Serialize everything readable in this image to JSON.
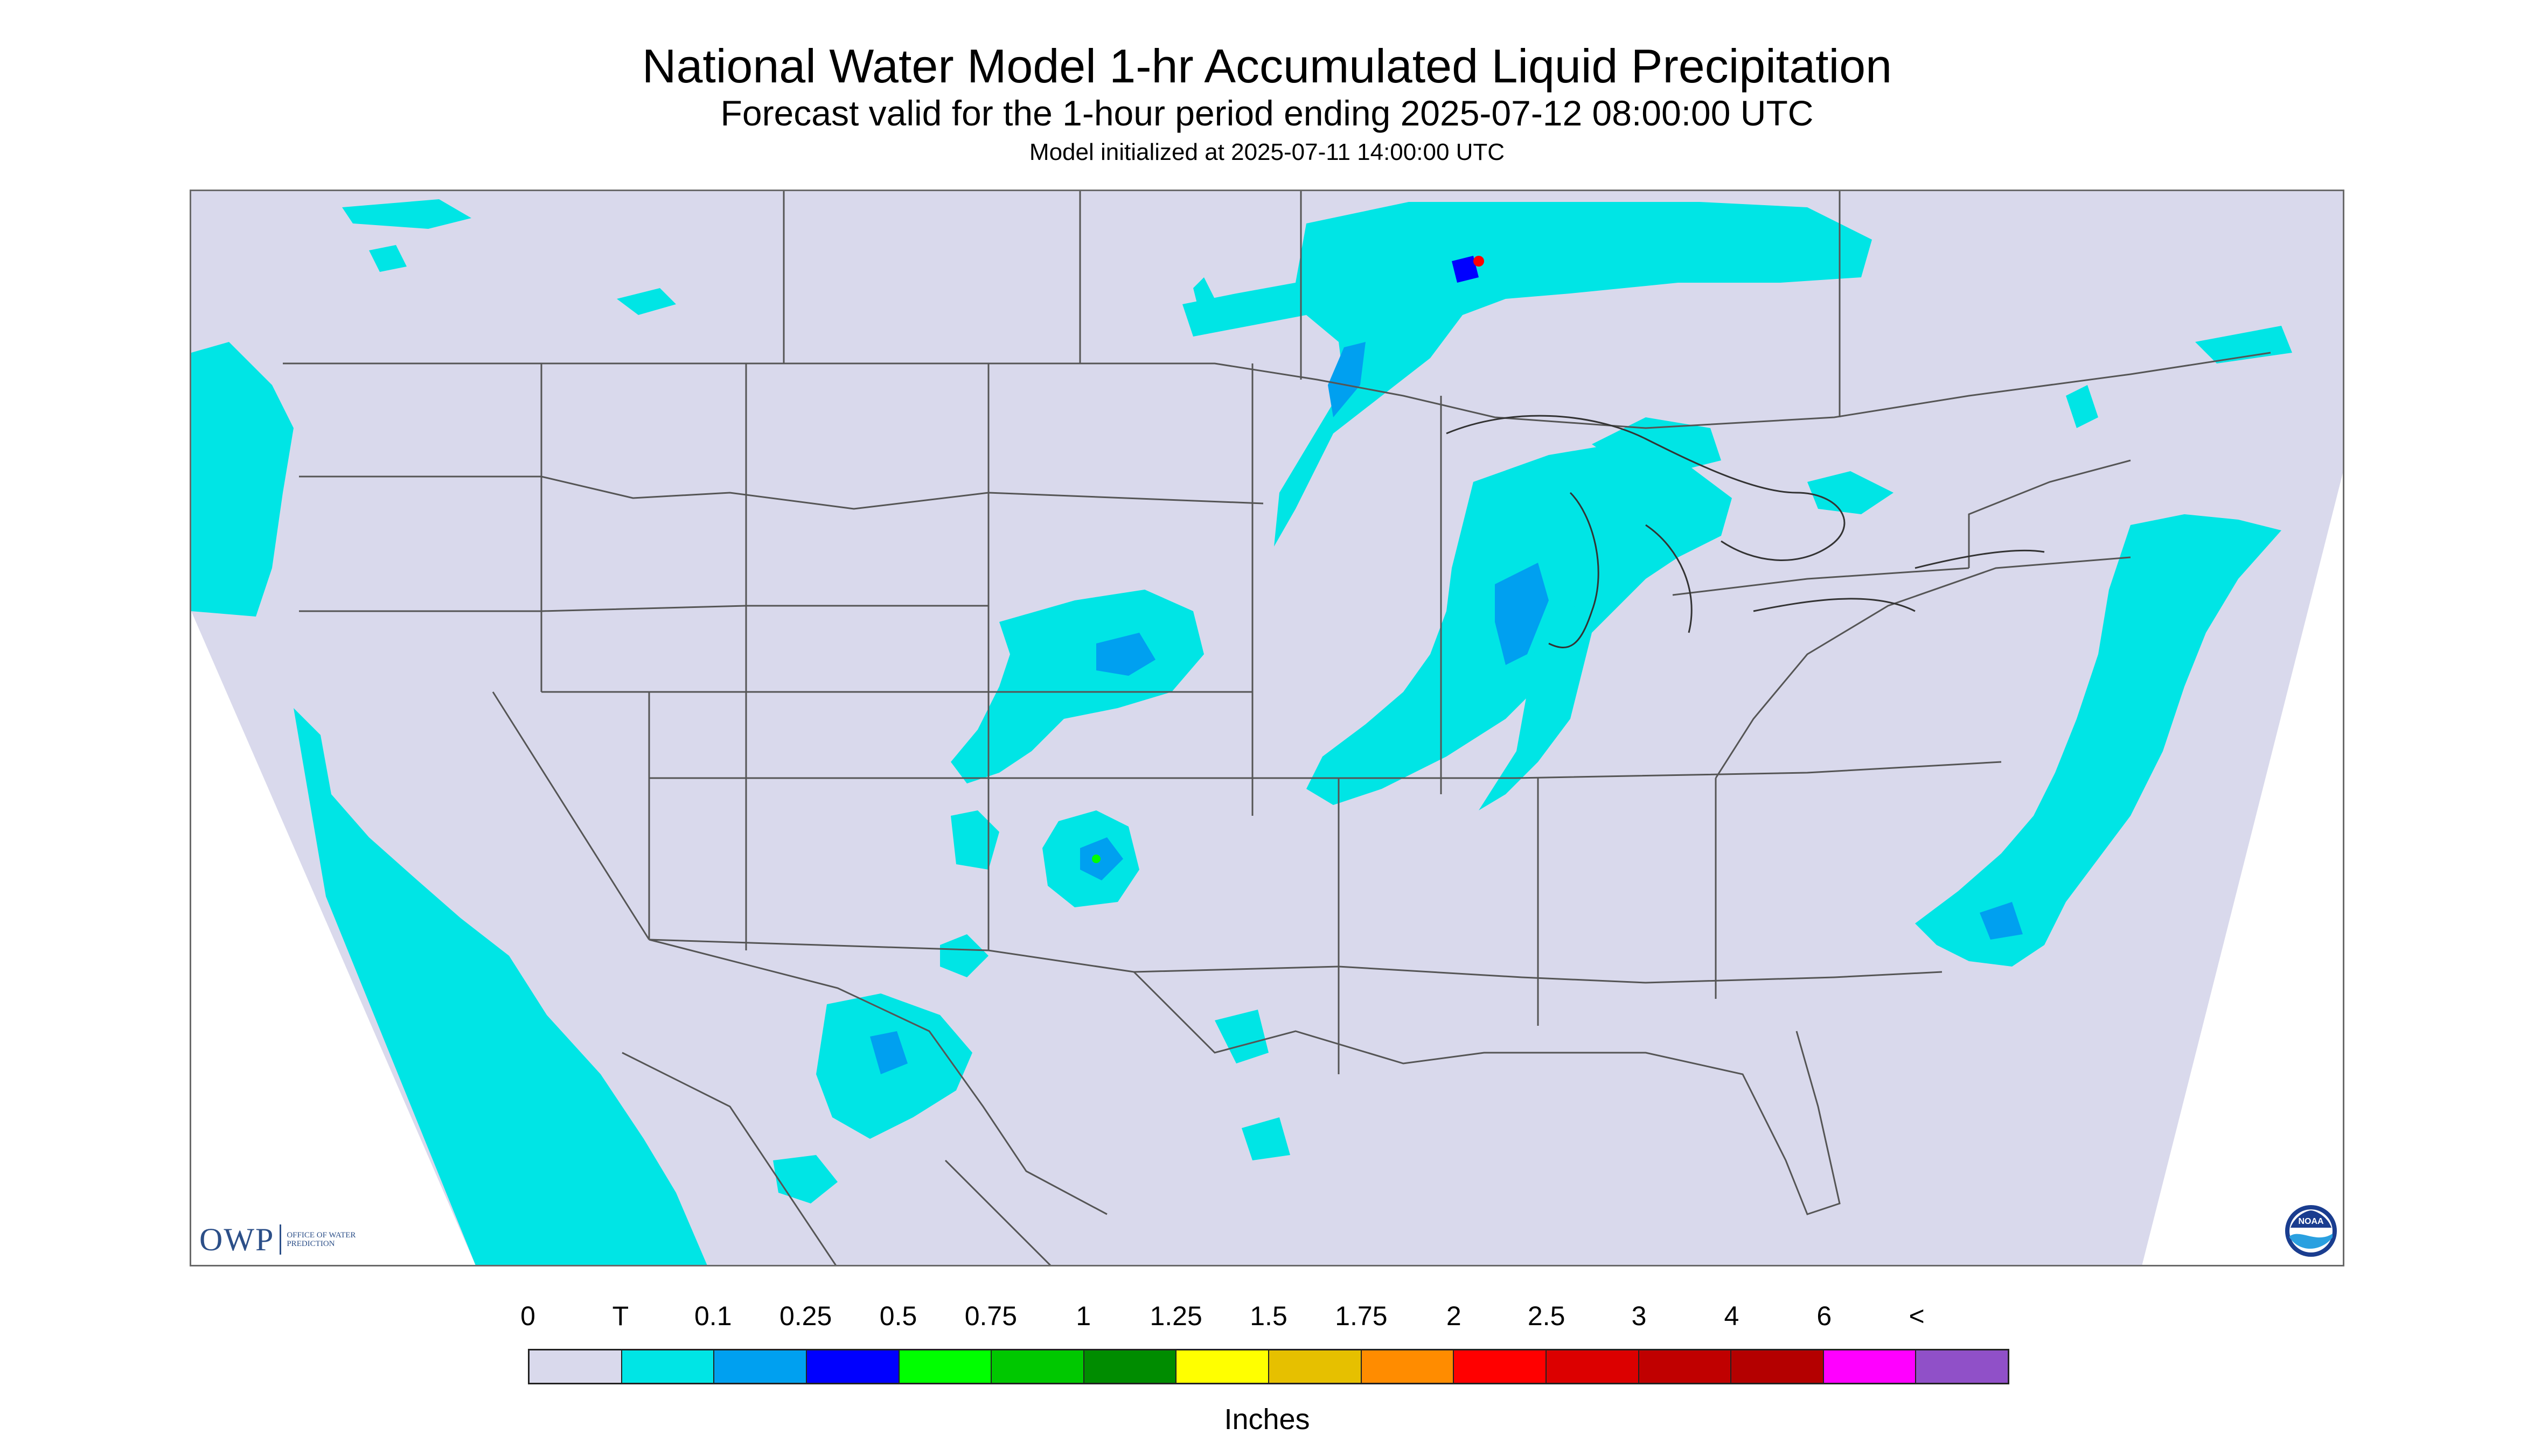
{
  "title": "National Water Model 1-hr Accumulated Liquid Precipitation",
  "subtitle": "Forecast valid for the 1-hour period ending 2025-07-12 08:00:00 UTC",
  "init_text": "Model initialized at 2025-07-11 14:00:00 UTC",
  "logos": {
    "owp_letters": "OWP",
    "owp_subtext": "OFFICE OF WATER PREDICTION",
    "noaa_text": "NOAA"
  },
  "legend": {
    "labels": [
      "0",
      "T",
      "0.1",
      "0.25",
      "0.5",
      "0.75",
      "1",
      "1.25",
      "1.5",
      "1.75",
      "2",
      "2.5",
      "3",
      "4",
      "6",
      "<"
    ],
    "colors": [
      "#d9d9ec",
      "#00e5e5",
      "#00a0f0",
      "#0000ff",
      "#00ff00",
      "#00c800",
      "#008c00",
      "#ffff00",
      "#e6c000",
      "#ff8c00",
      "#ff0000",
      "#dc0000",
      "#c00000",
      "#b40000",
      "#ff00ff",
      "#9050c8"
    ],
    "units": "Inches"
  },
  "colors": {
    "background_land": "#d9d9ec",
    "precip_trace": "#00e5e5",
    "precip_light": "#00a0f0",
    "precip_moderate": "#0000ff",
    "state_lines": "#555555"
  }
}
